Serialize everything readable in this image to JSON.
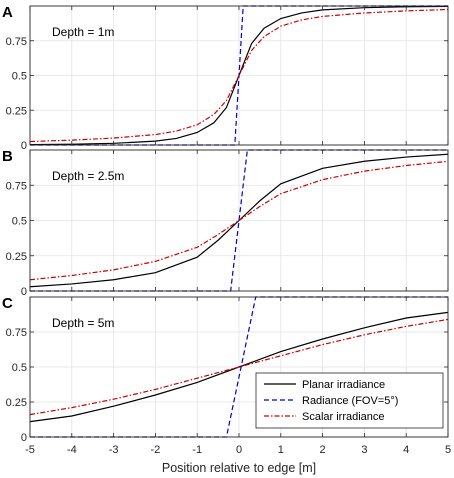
{
  "chart_data": [
    {
      "type": "line",
      "panel_label": "A",
      "annotation": "Depth = 1m",
      "xlim": [
        -5,
        5
      ],
      "ylim": [
        0,
        1
      ],
      "yticks": [
        0,
        0.25,
        0.5,
        0.75
      ],
      "ytick_labels": [
        "0",
        "0.25",
        "0.5",
        "0.75"
      ],
      "xticks": [
        -5,
        -4,
        -3,
        -2,
        -1,
        0,
        1,
        2,
        3,
        4,
        5
      ],
      "grid": true,
      "series": [
        {
          "key": "planar",
          "color": "#000000",
          "x": [
            -5,
            -4,
            -3,
            -2,
            -1.5,
            -1,
            -0.6,
            -0.3,
            0,
            0.3,
            0.6,
            1,
            1.5,
            2,
            3,
            4,
            5
          ],
          "y": [
            0.003,
            0.006,
            0.012,
            0.028,
            0.047,
            0.09,
            0.16,
            0.27,
            0.5,
            0.73,
            0.84,
            0.91,
            0.95,
            0.972,
            0.988,
            0.994,
            0.997
          ]
        },
        {
          "key": "radiance",
          "color": "#0000cc",
          "x": [
            -5,
            -0.1,
            0.1,
            5
          ],
          "y": [
            0,
            0,
            1,
            1
          ]
        },
        {
          "key": "scalar",
          "color": "#cc0000",
          "x": [
            -5,
            -4,
            -3,
            -2,
            -1.5,
            -1,
            -0.6,
            -0.3,
            0,
            0.3,
            0.6,
            1,
            1.5,
            2,
            3,
            4,
            5
          ],
          "y": [
            0.025,
            0.035,
            0.05,
            0.075,
            0.1,
            0.145,
            0.22,
            0.32,
            0.5,
            0.68,
            0.78,
            0.855,
            0.9,
            0.925,
            0.95,
            0.965,
            0.975
          ]
        }
      ]
    },
    {
      "type": "line",
      "panel_label": "B",
      "annotation": "Depth = 2.5m",
      "xlim": [
        -5,
        5
      ],
      "ylim": [
        0,
        1
      ],
      "yticks": [
        0,
        0.25,
        0.5,
        0.75
      ],
      "ytick_labels": [
        "0",
        "0.25",
        "0.5",
        "0.75"
      ],
      "xticks": [
        -5,
        -4,
        -3,
        -2,
        -1,
        0,
        1,
        2,
        3,
        4,
        5
      ],
      "grid": true,
      "series": [
        {
          "key": "planar",
          "color": "#000000",
          "x": [
            -5,
            -4,
            -3,
            -2,
            -1,
            -0.5,
            0,
            0.5,
            1,
            2,
            3,
            4,
            5
          ],
          "y": [
            0.03,
            0.05,
            0.08,
            0.13,
            0.24,
            0.36,
            0.5,
            0.64,
            0.76,
            0.87,
            0.92,
            0.95,
            0.97
          ]
        },
        {
          "key": "radiance",
          "color": "#0000cc",
          "x": [
            -5,
            -0.2,
            0.2,
            5
          ],
          "y": [
            0,
            0,
            1,
            1
          ]
        },
        {
          "key": "scalar",
          "color": "#cc0000",
          "x": [
            -5,
            -4,
            -3,
            -2,
            -1,
            -0.5,
            0,
            0.5,
            1,
            2,
            3,
            4,
            5
          ],
          "y": [
            0.08,
            0.11,
            0.15,
            0.21,
            0.31,
            0.4,
            0.5,
            0.6,
            0.69,
            0.79,
            0.85,
            0.89,
            0.92
          ]
        }
      ]
    },
    {
      "type": "line",
      "panel_label": "C",
      "annotation": "Depth = 5m",
      "xlim": [
        -5,
        5
      ],
      "ylim": [
        0,
        1
      ],
      "yticks": [
        0,
        0.25,
        0.5,
        0.75
      ],
      "ytick_labels": [
        "0",
        "0.25",
        "0.5",
        "0.75"
      ],
      "xticks": [
        -5,
        -4,
        -3,
        -2,
        -1,
        0,
        1,
        2,
        3,
        4,
        5
      ],
      "xtick_labels": [
        "-5",
        "-4",
        "-3",
        "-2",
        "-1",
        "0",
        "1",
        "2",
        "3",
        "4",
        "5"
      ],
      "xlabel": "Position relative to edge [m]",
      "grid": true,
      "legend": {
        "placement": "bottom-right",
        "entries": [
          "Planar irradiance",
          "Radiance (FOV=5°)",
          "Scalar irradiance"
        ]
      },
      "series": [
        {
          "key": "planar",
          "color": "#000000",
          "x": [
            -5,
            -4,
            -3,
            -2,
            -1,
            0,
            1,
            2,
            3,
            4,
            5
          ],
          "y": [
            0.11,
            0.15,
            0.22,
            0.3,
            0.39,
            0.5,
            0.61,
            0.7,
            0.78,
            0.85,
            0.89
          ]
        },
        {
          "key": "radiance",
          "color": "#0000cc",
          "x": [
            -5,
            -0.3,
            0.4,
            5
          ],
          "y": [
            0,
            0,
            1,
            1
          ]
        },
        {
          "key": "scalar",
          "color": "#cc0000",
          "x": [
            -5,
            -4,
            -3,
            -2,
            -1,
            0,
            1,
            2,
            3,
            4,
            5
          ],
          "y": [
            0.16,
            0.21,
            0.27,
            0.34,
            0.42,
            0.5,
            0.58,
            0.66,
            0.73,
            0.79,
            0.84
          ]
        }
      ]
    }
  ]
}
